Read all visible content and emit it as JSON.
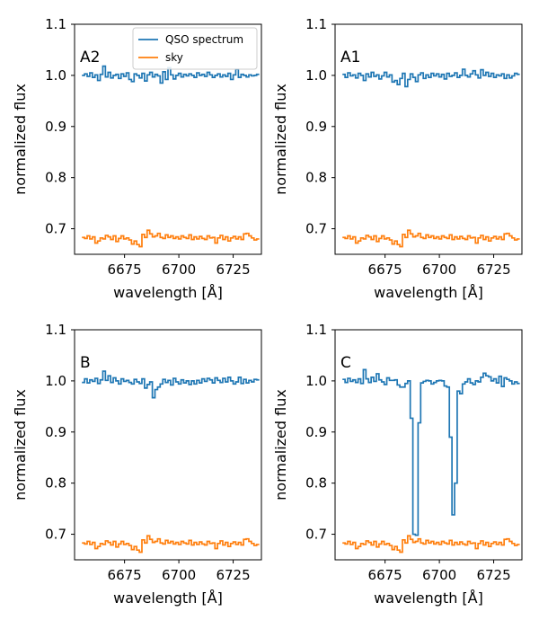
{
  "chart_data": {
    "type": "line",
    "xlabel": "wavelength [Å]",
    "ylabel": "normalized flux",
    "xlim": [
      6652,
      6738
    ],
    "ylim": [
      0.65,
      1.1
    ],
    "xticks": [
      6675,
      6700,
      6725
    ],
    "xtick_labels": [
      "6675",
      "6700",
      "6725"
    ],
    "yticks": [
      0.7,
      0.8,
      0.9,
      1.0,
      1.1
    ],
    "ytick_labels": [
      "0.7",
      "0.8",
      "0.9",
      "1.0",
      "1.1"
    ],
    "step": "mid",
    "series_styles": [
      {
        "name": "QSO spectrum",
        "color": "#1f77b4"
      },
      {
        "name": "sky",
        "color": "#ff7f0e"
      }
    ],
    "legend": {
      "location": "top-right",
      "panel": 0,
      "entries": [
        "QSO spectrum",
        "sky"
      ]
    },
    "panels": [
      {
        "label": "A2",
        "x_start": 6656,
        "x_step": 1.2,
        "series": [
          {
            "name": "QSO spectrum",
            "values": [
              1.0,
              1.003,
              0.998,
              1.005,
              0.996,
              1.001,
              0.99,
              1.002,
              1.018,
              0.997,
              1.006,
              0.995,
              1.0,
              1.002,
              0.994,
              1.003,
              0.998,
              1.005,
              0.992,
              0.988,
              1.003,
              1.0,
              0.995,
              1.004,
              0.989,
              1.001,
              1.006,
              0.997,
              1.002,
              0.999,
              0.985,
              1.007,
              0.992,
              1.015,
              1.001,
              0.993,
              1.0,
              1.004,
              0.997,
              1.002,
              0.999,
              1.003,
              1.0,
              0.996,
              1.005,
              1.0,
              1.002,
              0.998,
              1.006,
              1.001,
              0.996,
              1.0,
              1.003,
              0.997,
              1.001,
              0.998,
              1.004,
              0.992,
              1.001,
              1.012,
              0.996,
              1.002,
              1.0,
              0.997,
              1.001,
              0.999,
              1.0,
              1.002
            ]
          },
          {
            "name": "sky",
            "values": [
              0.683,
              0.681,
              0.686,
              0.68,
              0.684,
              0.672,
              0.676,
              0.682,
              0.68,
              0.687,
              0.684,
              0.679,
              0.686,
              0.675,
              0.681,
              0.686,
              0.68,
              0.682,
              0.678,
              0.67,
              0.676,
              0.669,
              0.665,
              0.689,
              0.683,
              0.697,
              0.69,
              0.684,
              0.686,
              0.691,
              0.683,
              0.681,
              0.688,
              0.683,
              0.686,
              0.681,
              0.684,
              0.68,
              0.686,
              0.683,
              0.681,
              0.688,
              0.679,
              0.684,
              0.68,
              0.685,
              0.681,
              0.679,
              0.686,
              0.682,
              0.683,
              0.672,
              0.682,
              0.687,
              0.679,
              0.684,
              0.676,
              0.682,
              0.685,
              0.68,
              0.684,
              0.679,
              0.69,
              0.691,
              0.686,
              0.682,
              0.678,
              0.68
            ]
          }
        ]
      },
      {
        "label": "A1",
        "x_start": 6656,
        "x_step": 1.2,
        "series": [
          {
            "name": "QSO spectrum",
            "values": [
              1.002,
              0.996,
              1.005,
              0.999,
              1.001,
              0.995,
              1.004,
              1.0,
              0.99,
              1.003,
              0.997,
              1.006,
              0.998,
              1.001,
              0.993,
              0.999,
              1.006,
              0.997,
              1.001,
              0.987,
              0.99,
              0.982,
              0.994,
              1.004,
              0.978,
              0.992,
              1.003,
              0.996,
              0.988,
              1.001,
              1.005,
              0.994,
              1.001,
              0.996,
              1.004,
              0.999,
              1.003,
              0.997,
              1.002,
              0.993,
              1.004,
              0.998,
              1.0,
              1.005,
              0.996,
              1.0,
              1.012,
              1.0,
              0.997,
              1.003,
              1.009,
              1.001,
              0.995,
              1.011,
              1.0,
              1.006,
              0.998,
              1.004,
              0.996,
              1.001,
              0.999,
              1.003,
              0.994,
              1.001,
              0.995,
              0.999,
              1.004,
              1.002
            ]
          },
          {
            "name": "sky",
            "values": [
              0.683,
              0.681,
              0.686,
              0.68,
              0.684,
              0.672,
              0.676,
              0.682,
              0.68,
              0.687,
              0.684,
              0.679,
              0.686,
              0.675,
              0.681,
              0.686,
              0.68,
              0.682,
              0.678,
              0.67,
              0.676,
              0.669,
              0.665,
              0.689,
              0.683,
              0.697,
              0.69,
              0.684,
              0.686,
              0.691,
              0.683,
              0.681,
              0.688,
              0.683,
              0.686,
              0.681,
              0.684,
              0.68,
              0.686,
              0.683,
              0.681,
              0.688,
              0.679,
              0.684,
              0.68,
              0.685,
              0.681,
              0.679,
              0.686,
              0.682,
              0.683,
              0.672,
              0.682,
              0.687,
              0.679,
              0.684,
              0.676,
              0.682,
              0.685,
              0.68,
              0.684,
              0.679,
              0.69,
              0.691,
              0.686,
              0.682,
              0.678,
              0.68
            ]
          }
        ]
      },
      {
        "label": "B",
        "x_start": 6656,
        "x_step": 1.2,
        "series": [
          {
            "name": "QSO spectrum",
            "values": [
              0.997,
              1.004,
              0.996,
              1.002,
              0.999,
              1.005,
              0.995,
              1.002,
              1.019,
              1.001,
              1.01,
              0.997,
              1.006,
              1.0,
              0.994,
              1.004,
              0.999,
              1.001,
              0.997,
              0.994,
              1.003,
              0.998,
              0.995,
              1.004,
              0.986,
              0.993,
              0.998,
              0.967,
              0.983,
              0.988,
              0.994,
              1.003,
              0.997,
              1.001,
              0.992,
              1.005,
              0.998,
              0.994,
              1.002,
              0.996,
              1.0,
              0.993,
              1.0,
              0.994,
              1.001,
              0.996,
              1.004,
              0.999,
              1.005,
              1.002,
              0.996,
              1.006,
              1.001,
              0.997,
              1.005,
              0.998,
              1.007,
              1.0,
              0.994,
              0.998,
              1.007,
              0.995,
              1.003,
              0.996,
              1.001,
              0.998,
              1.003,
              1.002
            ]
          },
          {
            "name": "sky",
            "values": [
              0.683,
              0.681,
              0.686,
              0.68,
              0.684,
              0.672,
              0.676,
              0.682,
              0.68,
              0.687,
              0.684,
              0.679,
              0.686,
              0.675,
              0.681,
              0.686,
              0.68,
              0.682,
              0.678,
              0.67,
              0.676,
              0.669,
              0.665,
              0.689,
              0.683,
              0.697,
              0.69,
              0.684,
              0.686,
              0.691,
              0.683,
              0.681,
              0.688,
              0.683,
              0.686,
              0.681,
              0.684,
              0.68,
              0.686,
              0.683,
              0.681,
              0.688,
              0.679,
              0.684,
              0.68,
              0.685,
              0.681,
              0.679,
              0.686,
              0.682,
              0.683,
              0.672,
              0.682,
              0.687,
              0.679,
              0.684,
              0.676,
              0.682,
              0.685,
              0.68,
              0.684,
              0.679,
              0.69,
              0.691,
              0.686,
              0.682,
              0.678,
              0.68
            ]
          }
        ]
      },
      {
        "label": "C",
        "x_start": 6656,
        "x_step": 1.2,
        "series": [
          {
            "name": "QSO spectrum",
            "values": [
              1.003,
              0.997,
              1.005,
              0.999,
              1.002,
              0.997,
              1.004,
              0.995,
              1.022,
              1.004,
              0.997,
              1.007,
              0.999,
              1.014,
              1.002,
              0.998,
              0.993,
              1.006,
              1.001,
              1.001,
              1.002,
              0.992,
              0.988,
              0.988,
              0.995,
              1.0,
              0.927,
              0.7,
              0.698,
              0.918,
              0.996,
              0.999,
              1.001,
              1.0,
              0.994,
              0.997,
              1.0,
              1.001,
              1.0,
              0.99,
              0.988,
              0.89,
              0.738,
              0.8,
              0.98,
              0.975,
              0.994,
              0.998,
              1.004,
              0.996,
              0.993,
              1.0,
              0.998,
              1.007,
              1.015,
              1.01,
              1.008,
              1.0,
              1.004,
              0.996,
              1.009,
              0.989,
              1.006,
              1.003,
              1.0,
              0.994,
              0.998,
              0.995
            ]
          },
          {
            "name": "sky",
            "values": [
              0.683,
              0.681,
              0.686,
              0.68,
              0.684,
              0.672,
              0.676,
              0.682,
              0.68,
              0.687,
              0.684,
              0.679,
              0.686,
              0.675,
              0.681,
              0.686,
              0.68,
              0.682,
              0.678,
              0.67,
              0.676,
              0.669,
              0.665,
              0.689,
              0.683,
              0.697,
              0.69,
              0.684,
              0.686,
              0.691,
              0.683,
              0.681,
              0.688,
              0.683,
              0.686,
              0.681,
              0.684,
              0.68,
              0.686,
              0.683,
              0.681,
              0.688,
              0.679,
              0.684,
              0.68,
              0.685,
              0.681,
              0.679,
              0.686,
              0.682,
              0.683,
              0.672,
              0.682,
              0.687,
              0.679,
              0.684,
              0.676,
              0.682,
              0.685,
              0.68,
              0.684,
              0.679,
              0.69,
              0.691,
              0.686,
              0.682,
              0.678,
              0.68
            ]
          }
        ]
      }
    ]
  }
}
